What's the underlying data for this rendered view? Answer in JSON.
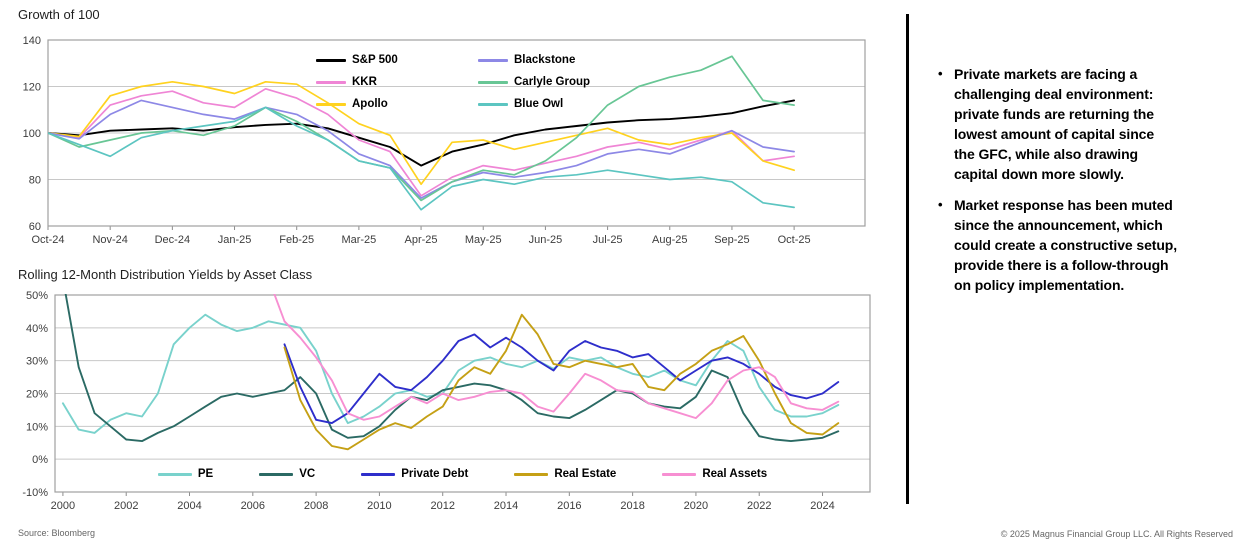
{
  "page": {
    "background": "#ffffff"
  },
  "chart_data": [
    {
      "id": "growth",
      "type": "line",
      "title": "Growth of 100",
      "xlabel": "",
      "ylabel": "",
      "ylim": [
        60,
        140
      ],
      "xlim": [
        0,
        13.14
      ],
      "grid": "horizontal",
      "legend_position": "top-center-two-columns",
      "y_ticks": [
        140,
        120,
        100,
        80,
        60
      ],
      "y_tick_labels": [
        "140",
        "120",
        "100",
        "80",
        "60"
      ],
      "x_ticks": [
        0,
        1,
        2,
        3,
        4,
        5,
        6,
        7,
        8,
        9,
        10,
        11,
        12
      ],
      "x_tick_labels": [
        "Oct-24",
        "Nov-24",
        "Dec-24",
        "Jan-25",
        "Feb-25",
        "Mar-25",
        "Apr-25",
        "May-25",
        "Jun-25",
        "Jul-25",
        "Aug-25",
        "Sep-25",
        "Oct-25"
      ],
      "x": [
        0,
        0.5,
        1,
        1.5,
        2,
        2.5,
        3,
        3.5,
        4,
        4.5,
        5,
        5.5,
        6,
        6.5,
        7,
        7.5,
        8,
        8.5,
        9,
        9.5,
        10,
        10.5,
        11,
        11.5,
        12
      ],
      "series": [
        {
          "name": "S&P 500",
          "color": "#000000",
          "width": 1.9,
          "values": [
            100,
            99,
            101,
            101.5,
            102,
            101,
            102.5,
            103.5,
            104,
            102,
            98,
            94,
            86,
            92,
            95,
            99,
            101.5,
            103,
            104.5,
            105.5,
            106,
            107,
            108.5,
            111.5,
            114
          ]
        },
        {
          "name": "KKR",
          "color": "#ef85d5",
          "width": 1.7,
          "values": [
            100,
            98,
            112,
            116,
            118,
            113,
            111,
            119,
            115,
            108,
            97,
            92,
            73,
            81,
            86,
            84,
            87,
            90,
            94,
            96,
            93,
            97,
            101,
            88,
            90
          ]
        },
        {
          "name": "Apollo",
          "color": "#ffd21f",
          "width": 1.7,
          "values": [
            100,
            98.5,
            116,
            120,
            122,
            120,
            117,
            122,
            121,
            113,
            104,
            99,
            78,
            96,
            97,
            93,
            96,
            99,
            102,
            97,
            95,
            98,
            100,
            88,
            84
          ]
        },
        {
          "name": "Blackstone",
          "color": "#8d88e6",
          "width": 1.7,
          "values": [
            100,
            97.5,
            108,
            114,
            111,
            108,
            106,
            111,
            108,
            101,
            91,
            86,
            72,
            79,
            83,
            81,
            83,
            86,
            91,
            93,
            91,
            96,
            101,
            94,
            92
          ]
        },
        {
          "name": "Carlyle Group",
          "color": "#68c695",
          "width": 1.7,
          "values": [
            100,
            94,
            97,
            100,
            101,
            99,
            103,
            111,
            105,
            97,
            88,
            85,
            71,
            79,
            84,
            82,
            88,
            98,
            112,
            120,
            124,
            127,
            133,
            114,
            112
          ]
        },
        {
          "name": "Blue Owl",
          "color": "#5cc5c1",
          "width": 1.7,
          "values": [
            100,
            95,
            90,
            98,
            101,
            103,
            105,
            111,
            103,
            97,
            88,
            85,
            67,
            77,
            80,
            78,
            81,
            82,
            84,
            82,
            80,
            81,
            79,
            70,
            68
          ]
        }
      ]
    },
    {
      "id": "yields",
      "type": "line",
      "title": "Rolling 12-Month Distribution Yields by Asset Class",
      "xlabel": "",
      "ylabel": "",
      "ylim": [
        -10,
        50
      ],
      "xlim": [
        1999.75,
        2025.5
      ],
      "grid": "horizontal",
      "legend_position": "bottom-center-row",
      "y_ticks": [
        50,
        40,
        30,
        20,
        10,
        0,
        -10
      ],
      "y_tick_labels": [
        "50%",
        "40%",
        "30%",
        "20%",
        "10%",
        "0%",
        "-10%"
      ],
      "x_ticks": [
        2000,
        2002,
        2004,
        2006,
        2008,
        2010,
        2012,
        2014,
        2016,
        2018,
        2020,
        2022,
        2024
      ],
      "x_tick_labels": [
        "2000",
        "2002",
        "2004",
        "2006",
        "2008",
        "2010",
        "2012",
        "2014",
        "2016",
        "2018",
        "2020",
        "2022",
        "2024"
      ],
      "x": [
        2000,
        2000.5,
        2001,
        2001.5,
        2002,
        2002.5,
        2003,
        2003.5,
        2004,
        2004.5,
        2005,
        2005.5,
        2006,
        2006.5,
        2007,
        2007.5,
        2008,
        2008.5,
        2009,
        2009.5,
        2010,
        2010.5,
        2011,
        2011.5,
        2012,
        2012.5,
        2013,
        2013.5,
        2014,
        2014.5,
        2015,
        2015.5,
        2016,
        2016.5,
        2017,
        2017.5,
        2018,
        2018.5,
        2019,
        2019.5,
        2020,
        2020.5,
        2021,
        2021.5,
        2022,
        2022.5,
        2023,
        2023.5,
        2024,
        2024.5
      ],
      "series": [
        {
          "name": "PE",
          "color": "#79d2cc",
          "width": 1.9,
          "values": [
            17,
            9,
            8,
            12,
            14,
            13,
            20,
            35,
            40,
            44,
            41,
            39,
            40,
            42,
            41,
            40,
            33,
            20,
            11,
            13,
            16,
            20,
            21,
            19,
            20,
            27,
            30,
            31,
            29,
            28,
            30,
            27.5,
            31,
            30,
            31,
            28,
            26,
            25,
            27,
            24,
            22.5,
            30,
            36,
            33,
            22,
            15,
            13,
            13,
            14,
            16.5
          ]
        },
        {
          "name": "VC",
          "color": "#2b6a64",
          "width": 1.9,
          "values": [
            55,
            28,
            14,
            10,
            6,
            5.5,
            8,
            10,
            13,
            16,
            19,
            20,
            19,
            20,
            21,
            25,
            20,
            9,
            6.5,
            7,
            10,
            15,
            19,
            18,
            21,
            22,
            23,
            22.5,
            21,
            18,
            14,
            13,
            12.5,
            15,
            18,
            21,
            20,
            17,
            16,
            15.5,
            19,
            27,
            25,
            14,
            7,
            6,
            5.5,
            6,
            6.5,
            8.5
          ]
        },
        {
          "name": "Private Debt",
          "color": "#2e2ecb",
          "width": 1.9,
          "values": [
            null,
            null,
            null,
            null,
            null,
            null,
            null,
            null,
            null,
            null,
            null,
            null,
            null,
            null,
            35,
            22,
            12,
            11,
            14,
            20,
            26,
            22,
            21,
            25,
            30,
            36,
            38,
            34,
            37,
            34,
            30,
            27,
            33,
            36,
            34,
            33,
            31,
            32,
            28,
            24,
            27,
            30,
            31,
            29,
            26,
            22,
            19.5,
            18.5,
            20,
            23.5
          ]
        },
        {
          "name": "Real Estate",
          "color": "#c5a015",
          "width": 1.9,
          "values": [
            null,
            null,
            null,
            null,
            null,
            null,
            null,
            null,
            null,
            null,
            null,
            null,
            null,
            null,
            34,
            18,
            9,
            4,
            3,
            6,
            9,
            11,
            9.5,
            13,
            16,
            24,
            28,
            26,
            33,
            44,
            38,
            29,
            28,
            30,
            29,
            28,
            29,
            22,
            21,
            26,
            29,
            33,
            35,
            37.5,
            30,
            20,
            11,
            8,
            7.5,
            11
          ]
        },
        {
          "name": "Real Assets",
          "color": "#f78fd2",
          "width": 1.9,
          "values": [
            null,
            null,
            null,
            null,
            null,
            null,
            null,
            null,
            null,
            null,
            null,
            null,
            null,
            55,
            42,
            37,
            31,
            24,
            14,
            12,
            13,
            16,
            19,
            17,
            20,
            18,
            19,
            20.5,
            21,
            20,
            16,
            14.5,
            20,
            26,
            24,
            21,
            20.5,
            17,
            15.5,
            14,
            12.5,
            17,
            24,
            27,
            28,
            25,
            17,
            15.5,
            15,
            17.5
          ]
        }
      ]
    }
  ],
  "commentary": {
    "bullets": [
      "Private markets are facing a challenging deal environment: private funds are returning the lowest amount of capital since the GFC, while also drawing capital down more slowly.",
      "Market response has been muted since the announcement, which could create a constructive setup, provide there is a follow-through on policy implementation."
    ],
    "bullet_char": "•"
  },
  "footer": {
    "source": "Source: Bloomberg",
    "copyright": "© 2025 Magnus Financial Group LLC. All Rights Reserved"
  },
  "style": {
    "grid_color": "#c8c8c8",
    "axis_color": "#a0a0a0",
    "tick_color": "#8c8c8c"
  }
}
